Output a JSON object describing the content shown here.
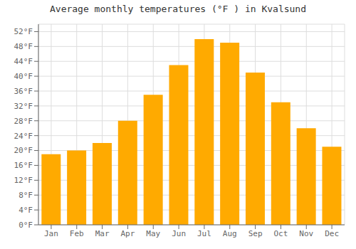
{
  "chart_data": {
    "type": "bar",
    "title": "Average monthly temperatures (°F ) in Kvalsund",
    "categories": [
      "Jan",
      "Feb",
      "Mar",
      "Apr",
      "May",
      "Jun",
      "Jul",
      "Aug",
      "Sep",
      "Oct",
      "Nov",
      "Dec"
    ],
    "values": [
      19,
      20,
      22,
      28,
      35,
      43,
      50,
      49,
      41,
      33,
      26,
      21
    ],
    "color": "#FFAA00",
    "ylim": [
      0,
      54
    ],
    "yticks": [
      {
        "value": 0,
        "label": "0°F"
      },
      {
        "value": 4,
        "label": "4°F"
      },
      {
        "value": 8,
        "label": "8°F"
      },
      {
        "value": 12,
        "label": "12°F"
      },
      {
        "value": 16,
        "label": "16°F"
      },
      {
        "value": 20,
        "label": "20°F"
      },
      {
        "value": 24,
        "label": "24°F"
      },
      {
        "value": 28,
        "label": "28°F"
      },
      {
        "value": 32,
        "label": "32°F"
      },
      {
        "value": 36,
        "label": "36°F"
      },
      {
        "value": 40,
        "label": "40°F"
      },
      {
        "value": 44,
        "label": "44°F"
      },
      {
        "value": 48,
        "label": "48°F"
      },
      {
        "value": 52,
        "label": "52°F"
      }
    ],
    "grid": true
  }
}
